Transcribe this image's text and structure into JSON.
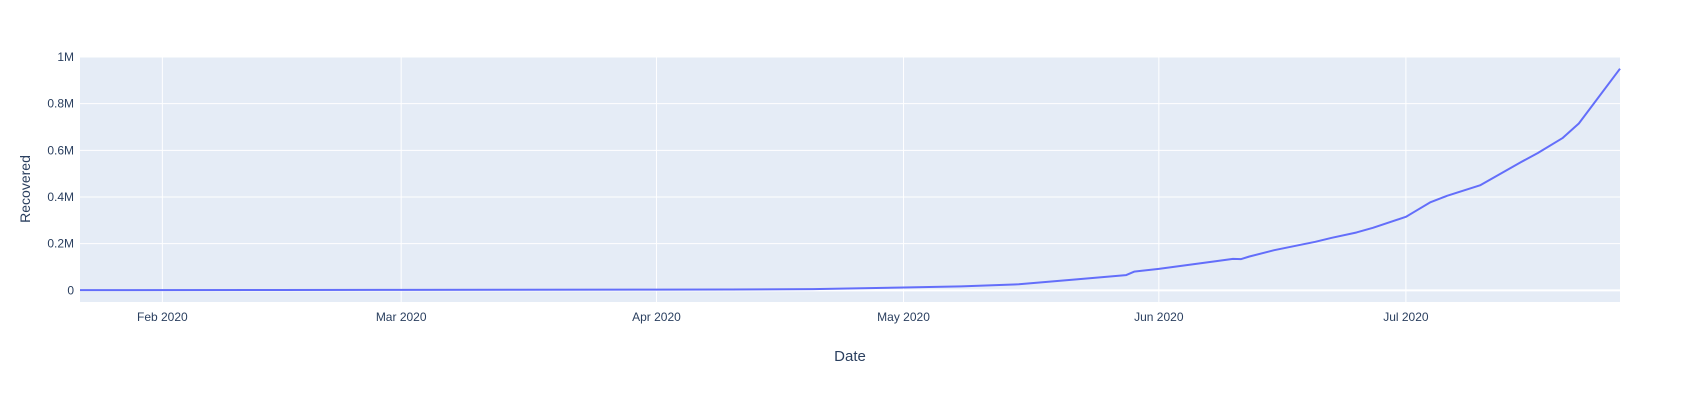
{
  "chart_data": {
    "type": "line",
    "title": "",
    "xlabel": "Date",
    "ylabel": "Recovered",
    "x_tick_labels": [
      "Feb 2020",
      "Mar 2020",
      "Apr 2020",
      "May 2020",
      "Jun 2020",
      "Jul 2020"
    ],
    "x_ticks": [
      "2020-02-01",
      "2020-03-01",
      "2020-04-01",
      "2020-05-01",
      "2020-06-01",
      "2020-07-01"
    ],
    "y_tick_labels": [
      "0",
      "0.2M",
      "0.4M",
      "0.6M",
      "0.8M",
      "1M"
    ],
    "y_ticks": [
      0,
      200000,
      400000,
      600000,
      800000,
      1000000
    ],
    "xlim": [
      "2020-01-22",
      "2020-07-27"
    ],
    "ylim": [
      -50000,
      1000000
    ],
    "grid": true,
    "colors": {
      "line": "#636efa",
      "plot_bg": "#e5ecf6",
      "grid": "#ffffff",
      "text": "#2a3f5f"
    },
    "series": [
      {
        "x": [
          "2020-01-22",
          "2020-02-15",
          "2020-03-01",
          "2020-03-15",
          "2020-04-01",
          "2020-04-10",
          "2020-04-20",
          "2020-05-01",
          "2020-05-08",
          "2020-05-15",
          "2020-05-22",
          "2020-05-28",
          "2020-05-29",
          "2020-06-01",
          "2020-06-08",
          "2020-06-10",
          "2020-06-11",
          "2020-06-12",
          "2020-06-15",
          "2020-06-20",
          "2020-06-22",
          "2020-06-25",
          "2020-06-27",
          "2020-07-01",
          "2020-07-02",
          "2020-07-04",
          "2020-07-06",
          "2020-07-10",
          "2020-07-15",
          "2020-07-17",
          "2020-07-20",
          "2020-07-22",
          "2020-07-27"
        ],
        "y": [
          1000,
          1500,
          1900,
          2500,
          3100,
          3300,
          5200,
          12000,
          17000,
          26000,
          47000,
          65000,
          80000,
          92000,
          125000,
          135000,
          134000,
          145000,
          172000,
          208000,
          225000,
          248000,
          268000,
          315000,
          336000,
          378000,
          405000,
          450000,
          550000,
          588000,
          652000,
          715000,
          950000
        ]
      }
    ]
  }
}
